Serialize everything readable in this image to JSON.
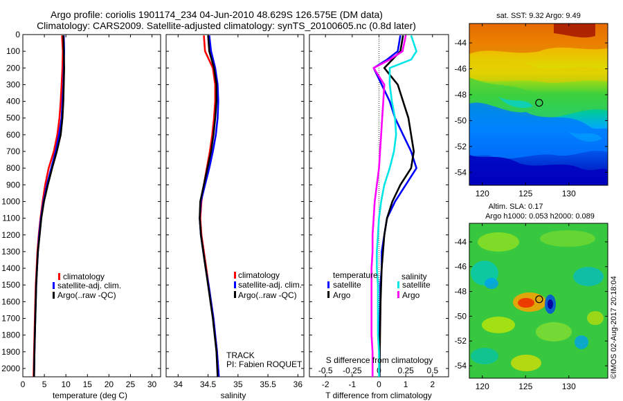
{
  "titles": {
    "line1": "Argo profile: coriolis 1901174_234 04-Jun-2010 48.629S 126.575E (DM data)",
    "line2": "Climatology: CARS2009. Satellite-adjusted climatology: synTS_20100605.nc (0.8d later)"
  },
  "colors": {
    "climatology": "#ff0000",
    "satellite": "#0000ff",
    "argo": "#000000",
    "salinity_satellite": "#00e5e5",
    "salinity_argo": "#ff00ff"
  },
  "chart_data": [
    {
      "type": "line",
      "id": "temperature",
      "xlabel": "temperature (deg C)",
      "xlim": [
        0,
        32
      ],
      "xticks": [
        0,
        5,
        10,
        15,
        20,
        25,
        30
      ],
      "ylim": [
        2050,
        0
      ],
      "yticks": [
        0,
        100,
        200,
        300,
        400,
        500,
        600,
        700,
        800,
        900,
        1000,
        1100,
        1200,
        1300,
        1400,
        1500,
        1600,
        1700,
        1800,
        1900,
        2000
      ],
      "legend_placement": "lower-right",
      "legend": [
        "climatology",
        "satellite-adj. clim.",
        "Argo(..raw -QC)"
      ],
      "series": [
        {
          "name": "climatology",
          "color": "#ff0000",
          "depth": [
            5,
            100,
            200,
            300,
            400,
            500,
            600,
            700,
            800,
            900,
            1000,
            1100,
            1200,
            1300,
            1400,
            1500,
            1600,
            1700,
            1800,
            1900,
            2050
          ],
          "values": [
            9.1,
            9.3,
            9.2,
            9.0,
            8.8,
            8.5,
            8.0,
            7.2,
            6.0,
            5.2,
            4.6,
            4.1,
            3.7,
            3.4,
            3.2,
            3.0,
            2.9,
            2.8,
            2.7,
            2.6,
            2.5
          ]
        },
        {
          "name": "satellite-adj. clim.",
          "color": "#0000ff",
          "depth": [
            5,
            100,
            200,
            300,
            400,
            500,
            600,
            700,
            800,
            900,
            1000,
            1100,
            1200,
            1300,
            1400,
            1500,
            1600,
            1700,
            1800,
            1900,
            2050
          ],
          "values": [
            9.5,
            9.6,
            9.5,
            9.4,
            9.2,
            9.0,
            8.4,
            7.6,
            6.6,
            5.6,
            4.8,
            4.2,
            3.8,
            3.5,
            3.3,
            3.1,
            3.0,
            2.9,
            2.8,
            2.7,
            2.6
          ]
        },
        {
          "name": "Argo(..raw -QC)",
          "color": "#000000",
          "depth": [
            5,
            100,
            200,
            300,
            400,
            500,
            600,
            700,
            800,
            900,
            1000,
            1100,
            1200,
            1300,
            1400,
            1500,
            1600,
            1700,
            1800,
            1900,
            2050
          ],
          "values": [
            9.4,
            9.5,
            9.6,
            9.5,
            9.4,
            9.2,
            8.8,
            7.9,
            6.8,
            5.8,
            4.9,
            4.3,
            3.9,
            3.5,
            3.3,
            3.1,
            3.0,
            2.9,
            2.8,
            2.7,
            2.6
          ]
        }
      ]
    },
    {
      "type": "line",
      "id": "salinity",
      "xlabel": "salinity",
      "xlim": [
        33.8,
        36.1
      ],
      "xticks": [
        34,
        34.5,
        35,
        35.5,
        36
      ],
      "ylim": [
        2050,
        0
      ],
      "yticks": [
        0,
        100,
        200,
        300,
        400,
        500,
        600,
        700,
        800,
        900,
        1000,
        1100,
        1200,
        1300,
        1400,
        1500,
        1600,
        1700,
        1800,
        1900,
        2000
      ],
      "legend_placement": "lower-right",
      "legend": [
        "climatology",
        "satellite-adj. clim.",
        "Argo(..raw -QC)"
      ],
      "annotations": [
        "TRACK",
        "PI: Fabien ROQUET"
      ],
      "series": [
        {
          "name": "climatology",
          "color": "#ff0000",
          "depth": [
            5,
            100,
            200,
            300,
            400,
            500,
            600,
            700,
            800,
            900,
            1000,
            1100,
            1200,
            1300,
            1400,
            1500,
            1600,
            1700,
            1800,
            1900,
            2050
          ],
          "values": [
            34.43,
            34.45,
            34.58,
            34.62,
            34.62,
            34.6,
            34.57,
            34.53,
            34.48,
            34.43,
            34.39,
            34.37,
            34.39,
            34.43,
            34.47,
            34.51,
            34.55,
            34.59,
            34.62,
            34.65,
            34.68
          ]
        },
        {
          "name": "satellite-adj. clim.",
          "color": "#0000ff",
          "depth": [
            5,
            100,
            200,
            300,
            400,
            500,
            600,
            700,
            800,
            900,
            1000,
            1100,
            1200,
            1300,
            1400,
            1500,
            1600,
            1700,
            1800,
            1900,
            2050
          ],
          "values": [
            34.52,
            34.55,
            34.62,
            34.66,
            34.67,
            34.66,
            34.63,
            34.58,
            34.52,
            34.45,
            34.38,
            34.36,
            34.38,
            34.42,
            34.46,
            34.51,
            34.55,
            34.59,
            34.62,
            34.65,
            34.68
          ]
        },
        {
          "name": "Argo(..raw -QC)",
          "color": "#000000",
          "depth": [
            5,
            100,
            200,
            300,
            400,
            500,
            600,
            700,
            800,
            900,
            1000,
            1100,
            1200,
            1300,
            1400,
            1500,
            1600,
            1700,
            1800,
            1900,
            2050
          ],
          "values": [
            34.5,
            34.52,
            34.6,
            34.64,
            34.64,
            34.62,
            34.59,
            34.55,
            34.49,
            34.43,
            34.37,
            34.36,
            34.38,
            34.42,
            34.46,
            34.5,
            34.54,
            34.58,
            34.61,
            34.64,
            34.66
          ]
        }
      ]
    },
    {
      "type": "line",
      "id": "difference",
      "xlabel": "T difference from climatology",
      "xlabel_top": "S difference from climatology",
      "xlim": [
        -2.6,
        2.6
      ],
      "xticks": [
        -2,
        -1,
        0,
        1,
        2
      ],
      "xticks_top": [
        -0.5,
        -0.25,
        0,
        0.25,
        0.5
      ],
      "xticks_top_labels": [
        "-0.5",
        "-0.25",
        "0",
        "0.25",
        "0.5"
      ],
      "ylim": [
        2050,
        0
      ],
      "zero_line": "dotted",
      "legend": {
        "temperature": "temperature",
        "salinity": "salinity",
        "satellite": "satellite",
        "argo": "Argo"
      },
      "series": [
        {
          "name": "satellite",
          "group": "temperature",
          "color": "#0000ff",
          "depth": [
            5,
            100,
            150,
            200,
            300,
            400,
            500,
            600,
            700,
            800,
            900,
            1000,
            1100,
            1200,
            1300,
            1400,
            1500,
            1600,
            1700,
            1800,
            1900,
            2050
          ],
          "values": [
            0.8,
            0.7,
            0.3,
            -0.2,
            0.1,
            0.4,
            0.6,
            0.9,
            1.2,
            1.4,
            1.0,
            0.6,
            0.3,
            0.2,
            0.1,
            0.1,
            0.05,
            0.05,
            0.03,
            0.02,
            0.02,
            0.02
          ]
        },
        {
          "name": "Argo",
          "group": "temperature",
          "color": "#000000",
          "depth": [
            5,
            100,
            150,
            200,
            300,
            400,
            500,
            600,
            700,
            800,
            900,
            1000,
            1100,
            1200,
            1300,
            1400,
            1500,
            1600,
            1700,
            1800,
            1900,
            2050
          ],
          "values": [
            0.9,
            0.8,
            0.5,
            0.2,
            0.7,
            0.9,
            1.1,
            1.2,
            1.3,
            1.2,
            0.8,
            0.5,
            0.3,
            0.2,
            0.15,
            0.1,
            0.08,
            0.06,
            0.05,
            0.04,
            0.03,
            0.02
          ]
        },
        {
          "name": "satellite",
          "group": "salinity",
          "color": "#00e5e5",
          "depth": [
            5,
            100,
            150,
            200,
            300,
            400,
            500,
            600,
            700,
            800,
            900,
            1000,
            1100,
            1200,
            1300,
            1400,
            1500,
            1600,
            1700,
            1800,
            1900,
            2050
          ],
          "values": [
            0.3,
            0.35,
            0.3,
            0.1,
            0.1,
            0.12,
            0.15,
            0.16,
            0.14,
            0.1,
            0.05,
            0.02,
            0.0,
            -0.01,
            -0.02,
            -0.02,
            -0.01,
            -0.01,
            -0.01,
            -0.01,
            0.0,
            0.0
          ]
        },
        {
          "name": "Argo",
          "group": "salinity",
          "color": "#ff00ff",
          "depth": [
            5,
            100,
            150,
            200,
            300,
            400,
            500,
            600,
            700,
            800,
            900,
            1000,
            1100,
            1200,
            1300,
            1400,
            1500,
            1600,
            1700,
            1800,
            1900,
            2050
          ],
          "values": [
            0.25,
            0.22,
            0.1,
            -0.05,
            0.05,
            0.04,
            0.03,
            0.02,
            0.01,
            0.0,
            -0.02,
            -0.04,
            -0.05,
            -0.06,
            -0.06,
            -0.07,
            -0.07,
            -0.07,
            -0.07,
            -0.07,
            -0.06,
            -0.06
          ]
        }
      ]
    },
    {
      "type": "heatmap",
      "id": "sst-map",
      "title": "sat. SST: 9.32 Argo: 9.49",
      "xlim": [
        118.5,
        134.5
      ],
      "ylim": [
        -55,
        -42.5
      ],
      "xticks": [
        120,
        125,
        130
      ],
      "yticks": [
        -44,
        -46,
        -48,
        -50,
        -52,
        -54
      ],
      "yticklabels": [
        "-44",
        "-46",
        "-48",
        "-50",
        "-52",
        "-54"
      ],
      "marker": {
        "lon": 126.575,
        "lat": -48.629
      },
      "colormap": "jet"
    },
    {
      "type": "heatmap",
      "id": "sla-map",
      "title": "Altim. SLA: 0.17",
      "subtitle": "Argo h1000: 0.053 h2000: 0.089",
      "xlim": [
        118.5,
        134.5
      ],
      "ylim": [
        -55,
        -42.5
      ],
      "xticks": [
        120,
        125,
        130
      ],
      "yticks": [
        -44,
        -46,
        -48,
        -50,
        -52,
        -54
      ],
      "yticklabels": [
        "-44",
        "-46",
        "-48",
        "-50",
        "-52",
        "-54"
      ],
      "marker": {
        "lon": 126.575,
        "lat": -48.629
      },
      "colormap": "jet"
    }
  ],
  "footer": {
    "stamp": "©IMOS 02-Aug-2017 20:18:04"
  }
}
